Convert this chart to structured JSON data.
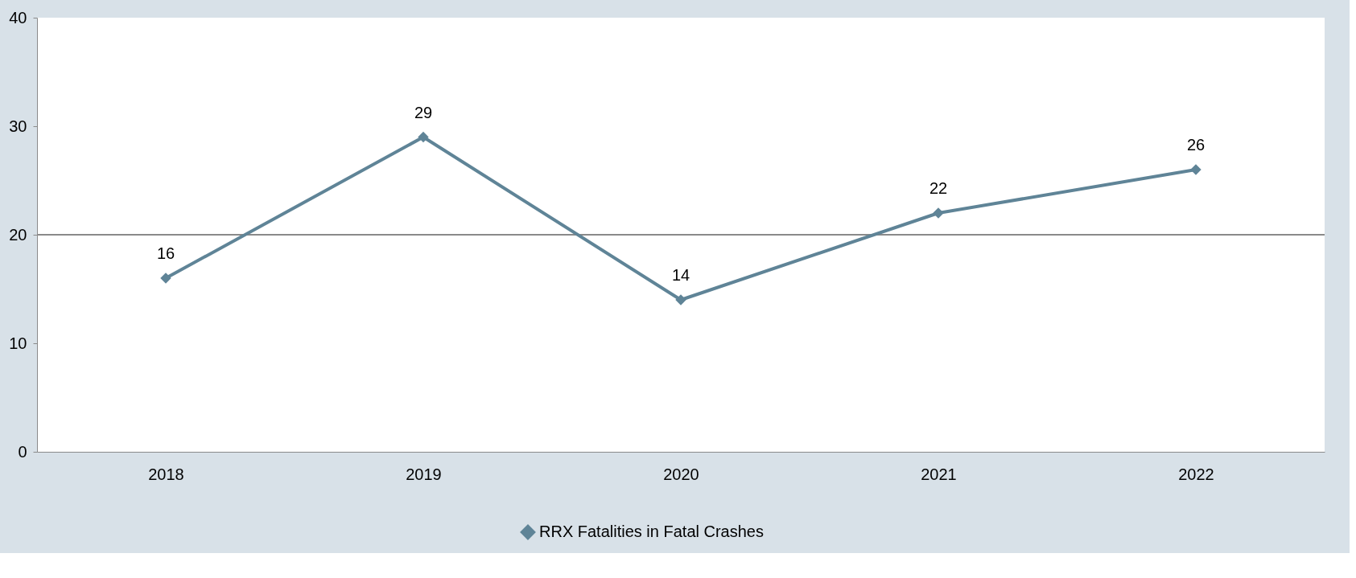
{
  "chart_data": {
    "type": "line",
    "categories": [
      "2018",
      "2019",
      "2020",
      "2021",
      "2022"
    ],
    "series": [
      {
        "name": "RRX Fatalities in Fatal Crashes",
        "color": "#5f8497",
        "values": [
          16,
          29,
          14,
          22,
          26
        ]
      }
    ],
    "ylim": [
      0,
      40
    ],
    "yticks": [
      0,
      10,
      20,
      30,
      40
    ],
    "ref_lines": [
      {
        "axis": "y",
        "value": 20,
        "color": "#8a8a8a"
      }
    ],
    "grid": false,
    "legend": "bottom",
    "marker": "diamond",
    "line_style": "solid",
    "data_labels": true
  }
}
